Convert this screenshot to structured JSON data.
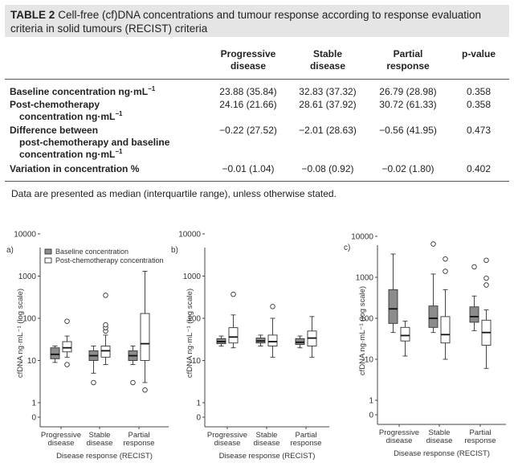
{
  "caption": {
    "label": "TABLE 2",
    "text": "Cell-free (cf)DNA concentrations and tumour response according to response evaluation criteria in solid tumours (RECIST) criteria"
  },
  "table": {
    "headers": [
      {
        "line1": "Progressive",
        "line2": "disease"
      },
      {
        "line1": "Stable",
        "line2": "disease"
      },
      {
        "line1": "Partial",
        "line2": "response"
      },
      {
        "line1": "p-value",
        "line2": ""
      }
    ],
    "rows": [
      {
        "label_lines": [
          "Baseline concentration ng·mL",
          ""
        ],
        "sup": "−1",
        "values": [
          "23.88 (35.84)",
          "32.83 (37.32)",
          "26.79 (28.98)",
          "0.358"
        ]
      },
      {
        "label_lines": [
          "Post-chemotherapy",
          "concentration ng·mL"
        ],
        "sup": "−1",
        "values": [
          "24.16 (21.66)",
          "28.61 (37.92)",
          "30.72 (61.33)",
          "0.358"
        ]
      },
      {
        "label_lines": [
          "Difference between",
          "post-chemotherapy and baseline",
          "concentration ng·mL"
        ],
        "sup": "−1",
        "values": [
          "−0.22 (27.52)",
          "−2.01 (28.63)",
          "−0.56 (41.95)",
          "0.473"
        ]
      },
      {
        "label_lines": [
          "Variation in concentration %"
        ],
        "sup": "",
        "values": [
          "−0.01 (1.04)",
          "−0.08 (0.92)",
          "−0.02 (1.80)",
          "0.402"
        ]
      }
    ],
    "note": "Data are presented as median (interquartile range), unless otherwise stated."
  },
  "chart_data": [
    {
      "type": "boxplot",
      "panel": "a)",
      "ylabel": "cfDNA ng·mL⁻¹ (log scale)",
      "xlabel": "Disease response (RECIST)",
      "yscale": "log",
      "yticks": [
        "0",
        "1",
        "10",
        "100",
        "1000",
        "10000"
      ],
      "categories": [
        [
          "Progressive",
          "disease"
        ],
        [
          "Stable",
          "disease"
        ],
        [
          "Partial",
          "response"
        ]
      ],
      "legend": [
        "Baseline concentration",
        "Post-chemotherapy concentration"
      ],
      "legend_position": "top-left",
      "series": [
        {
          "name": "Baseline concentration",
          "fill": "#8c8c8c",
          "boxes": [
            {
              "whislo": 9,
              "q1": 11,
              "med": 14,
              "q3": 20,
              "whishi": 22,
              "fliers": []
            },
            {
              "whislo": 5,
              "q1": 10,
              "med": 13,
              "q3": 17,
              "whishi": 22,
              "fliers": [
                3
              ]
            },
            {
              "whislo": 8,
              "q1": 10,
              "med": 13,
              "q3": 17,
              "whishi": 22,
              "fliers": [
                3
              ]
            }
          ]
        },
        {
          "name": "Post-chemotherapy concentration",
          "fill": "#ffffff",
          "boxes": [
            {
              "whislo": 12,
              "q1": 16,
              "med": 20,
              "q3": 28,
              "whishi": 38,
              "fliers": [
                8,
                85
              ]
            },
            {
              "whislo": 8,
              "q1": 12,
              "med": 17,
              "q3": 22,
              "whishi": 40,
              "fliers": [
                50,
                60,
                70,
                350
              ]
            },
            {
              "whislo": 3,
              "q1": 10,
              "med": 25,
              "q3": 130,
              "whishi": 1300,
              "fliers": [
                2
              ]
            }
          ]
        }
      ]
    },
    {
      "type": "boxplot",
      "panel": "b)",
      "ylabel": "cfDNA ng·mL⁻¹ (log scale)",
      "xlabel": "Disease response (RECIST)",
      "yscale": "log",
      "yticks": [
        "0",
        "1",
        "10",
        "100",
        "1000",
        "10000"
      ],
      "categories": [
        [
          "Progressive",
          "disease"
        ],
        [
          "Stable",
          "disease"
        ],
        [
          "Partial",
          "response"
        ]
      ],
      "series": [
        {
          "name": "Baseline concentration",
          "fill": "#8c8c8c",
          "boxes": [
            {
              "whislo": 22,
              "q1": 25,
              "med": 28,
              "q3": 33,
              "whishi": 38,
              "fliers": []
            },
            {
              "whislo": 22,
              "q1": 26,
              "med": 29,
              "q3": 34,
              "whishi": 40,
              "fliers": []
            },
            {
              "whislo": 20,
              "q1": 24,
              "med": 27,
              "q3": 33,
              "whishi": 38,
              "fliers": []
            }
          ]
        },
        {
          "name": "Post-chemotherapy concentration",
          "fill": "#ffffff",
          "boxes": [
            {
              "whislo": 20,
              "q1": 26,
              "med": 36,
              "q3": 60,
              "whishi": 120,
              "fliers": [
                370
              ]
            },
            {
              "whislo": 12,
              "q1": 22,
              "med": 28,
              "q3": 40,
              "whishi": 100,
              "fliers": [
                190
              ]
            },
            {
              "whislo": 12,
              "q1": 22,
              "med": 34,
              "q3": 50,
              "whishi": 110,
              "fliers": []
            }
          ]
        }
      ]
    },
    {
      "type": "boxplot",
      "panel": "c)",
      "ylabel": "cfDNA ng·mL⁻¹ (log scale)",
      "xlabel": "Disease response (RECIST)",
      "yscale": "log",
      "yticks": [
        "0",
        "1",
        "10",
        "100",
        "1000",
        "10000"
      ],
      "categories": [
        [
          "Progressive",
          "disease"
        ],
        [
          "Stable",
          "disease"
        ],
        [
          "Partial",
          "response"
        ]
      ],
      "series": [
        {
          "name": "Baseline concentration",
          "fill": "#8c8c8c",
          "boxes": [
            {
              "whislo": 45,
              "q1": 75,
              "med": 170,
              "q3": 500,
              "whishi": 3700,
              "fliers": []
            },
            {
              "whislo": 45,
              "q1": 60,
              "med": 100,
              "q3": 200,
              "whishi": 1200,
              "fliers": [
                6500
              ]
            },
            {
              "whislo": 50,
              "q1": 80,
              "med": 110,
              "q3": 190,
              "whishi": 350,
              "fliers": [
                1800
              ]
            }
          ]
        },
        {
          "name": "Post-chemotherapy concentration",
          "fill": "#ffffff",
          "boxes": [
            {
              "whislo": 12,
              "q1": 28,
              "med": 38,
              "q3": 60,
              "whishi": 85,
              "fliers": []
            },
            {
              "whislo": 10,
              "q1": 25,
              "med": 40,
              "q3": 110,
              "whishi": 500,
              "fliers": [
                1400,
                2800
              ]
            },
            {
              "whislo": 6,
              "q1": 22,
              "med": 45,
              "q3": 90,
              "whishi": 160,
              "fliers": [
                650,
                950,
                2600
              ]
            }
          ]
        }
      ]
    }
  ]
}
